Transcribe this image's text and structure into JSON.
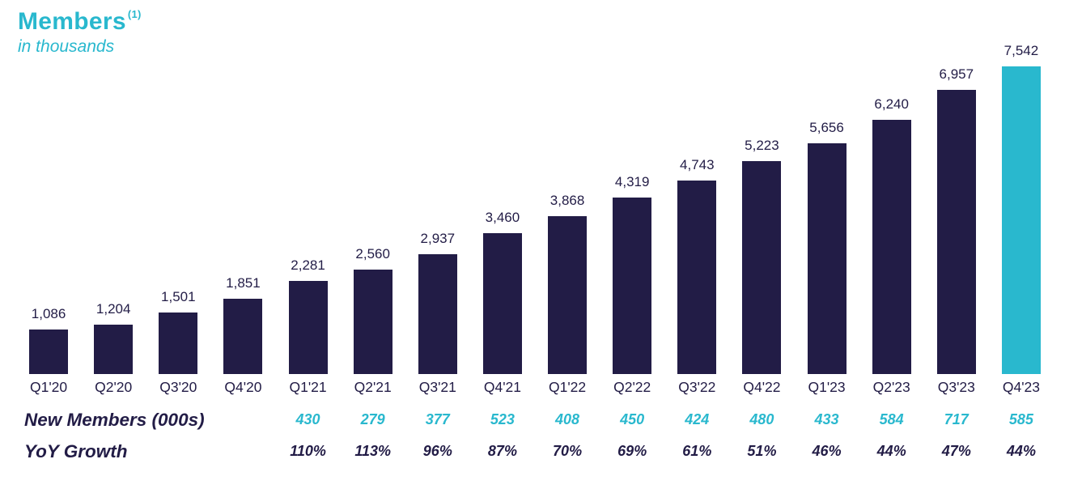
{
  "header": {
    "title": "Members",
    "footnote_marker": "(1)",
    "subtitle": "in thousands"
  },
  "colors": {
    "dark_navy": "#221C46",
    "accent_cyan": "#29B8CE"
  },
  "chart_data": {
    "type": "bar",
    "title": "Members",
    "unit": "in thousands",
    "categories": [
      "Q1'20",
      "Q2'20",
      "Q3'20",
      "Q4'20",
      "Q1'21",
      "Q2'21",
      "Q3'21",
      "Q4'21",
      "Q1'22",
      "Q2'22",
      "Q3'22",
      "Q4'22",
      "Q1'23",
      "Q2'23",
      "Q3'23",
      "Q4'23"
    ],
    "values": [
      1086,
      1204,
      1501,
      1851,
      2281,
      2560,
      2937,
      3460,
      3868,
      4319,
      4743,
      5223,
      5656,
      6240,
      6957,
      7542
    ],
    "value_labels": [
      "1,086",
      "1,204",
      "1,501",
      "1,851",
      "2,281",
      "2,560",
      "2,937",
      "3,460",
      "3,868",
      "4,319",
      "4,743",
      "5,223",
      "5,656",
      "6,240",
      "6,957",
      "7,542"
    ],
    "highlight_index": 15,
    "bar_color": "#221C46",
    "highlight_color": "#29B8CE",
    "ymax": 7542,
    "grid": false,
    "legend": false
  },
  "table": {
    "label_span_columns": 4,
    "rows": [
      {
        "label": "New Members (000s)",
        "values": [
          "430",
          "279",
          "377",
          "523",
          "408",
          "450",
          "424",
          "480",
          "433",
          "584",
          "717",
          "585"
        ],
        "value_color": "#29B8CE",
        "label_color": "#221C46"
      },
      {
        "label": "YoY Growth",
        "values": [
          "110%",
          "113%",
          "96%",
          "87%",
          "70%",
          "69%",
          "61%",
          "51%",
          "46%",
          "44%",
          "47%",
          "44%"
        ],
        "value_color": "#221C46",
        "label_color": "#221C46"
      }
    ]
  }
}
